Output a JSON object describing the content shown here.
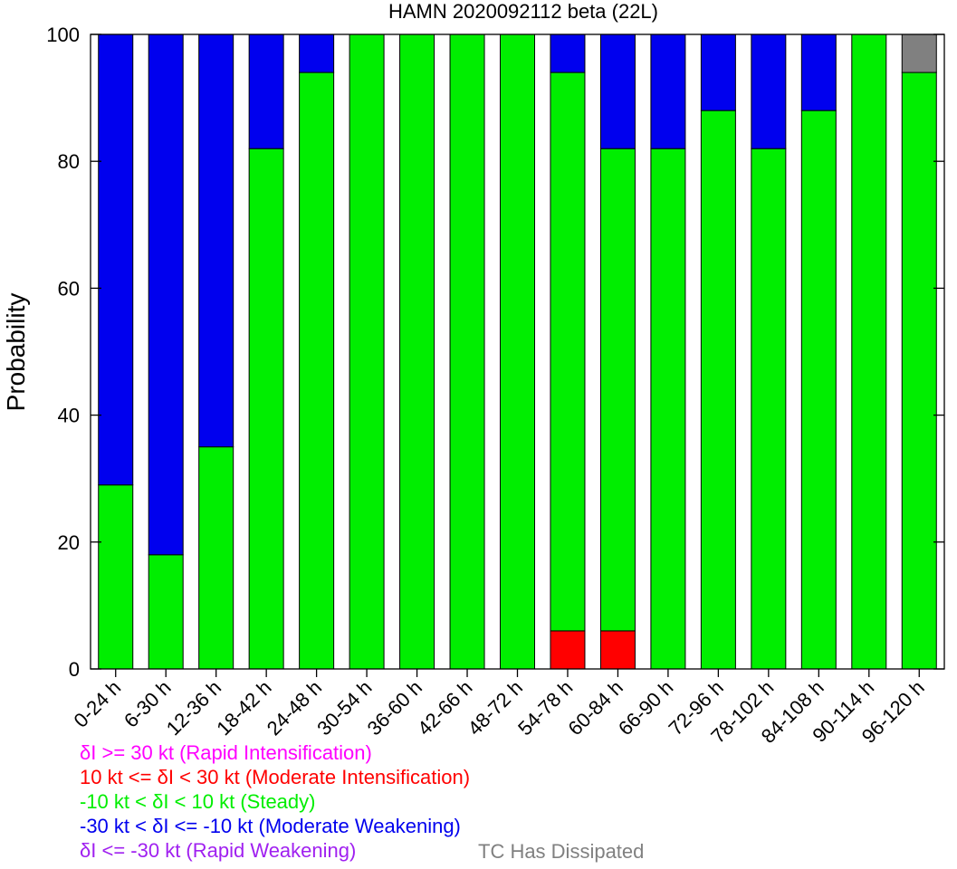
{
  "chart_data": {
    "type": "bar",
    "stacked": true,
    "title": "HAMN 2020092112 beta (22L)",
    "ylabel": "Probability",
    "xlabel": "",
    "ylim": [
      0,
      100
    ],
    "yticks": [
      0,
      20,
      40,
      60,
      80,
      100
    ],
    "grid": false,
    "categories": [
      "0-24 h",
      "6-30 h",
      "12-36 h",
      "18-42 h",
      "24-48 h",
      "30-54 h",
      "36-60 h",
      "42-66 h",
      "48-72 h",
      "54-78 h",
      "60-84 h",
      "66-90 h",
      "72-96 h",
      "78-102 h",
      "84-108 h",
      "90-114 h",
      "96-120 h"
    ],
    "series": [
      {
        "key": "rapid_weakening",
        "color": "#a020f0",
        "values": [
          0,
          0,
          0,
          0,
          0,
          0,
          0,
          0,
          0,
          0,
          0,
          0,
          0,
          0,
          0,
          0,
          0
        ]
      },
      {
        "key": "moderate_intensification",
        "color": "#ff0000",
        "values": [
          0,
          0,
          0,
          0,
          0,
          0,
          0,
          0,
          0,
          6,
          6,
          0,
          0,
          0,
          0,
          0,
          0
        ]
      },
      {
        "key": "rapid_intensification",
        "color": "#ff00ff",
        "values": [
          0,
          0,
          0,
          0,
          0,
          0,
          0,
          0,
          0,
          0,
          0,
          0,
          0,
          0,
          0,
          0,
          0
        ]
      },
      {
        "key": "steady",
        "color": "#00ee00",
        "values": [
          29,
          18,
          35,
          82,
          94,
          100,
          100,
          100,
          100,
          88,
          76,
          82,
          88,
          82,
          88,
          100,
          94
        ]
      },
      {
        "key": "moderate_weakening",
        "color": "#0000ee",
        "values": [
          71,
          82,
          65,
          18,
          6,
          0,
          0,
          0,
          0,
          6,
          18,
          18,
          12,
          18,
          12,
          0,
          0
        ]
      },
      {
        "key": "dissipated",
        "color": "#808080",
        "values": [
          0,
          0,
          0,
          0,
          0,
          0,
          0,
          0,
          0,
          0,
          0,
          0,
          0,
          0,
          0,
          0,
          6
        ]
      }
    ]
  },
  "legend": [
    {
      "text": "δI >= 30 kt (Rapid Intensification)",
      "color": "#ff00ff"
    },
    {
      "text": "10 kt <= δI < 30 kt (Moderate Intensification)",
      "color": "#ff0000"
    },
    {
      "text": "-10 kt < δI < 10 kt (Steady)",
      "color": "#00ee00"
    },
    {
      "text": "-30 kt < δI <= -10 kt (Moderate Weakening)",
      "color": "#0000ee"
    },
    {
      "text": "δI <= -30 kt (Rapid Weakening)",
      "color": "#a020f0"
    }
  ],
  "dissipated_label": {
    "text": "TC Has Dissipated",
    "color": "#808080"
  }
}
